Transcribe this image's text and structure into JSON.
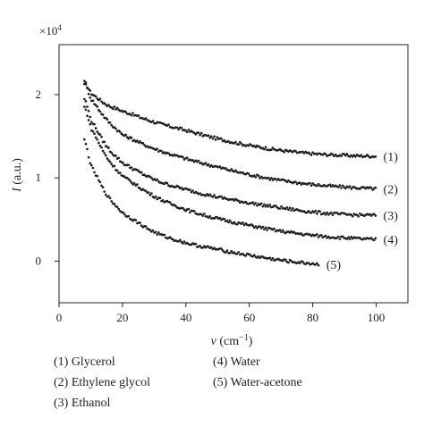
{
  "chart_data": {
    "type": "scatter",
    "x_range": [
      0,
      110
    ],
    "y_range": [
      -0.5,
      2.6
    ],
    "y_multiplier_label": "×10",
    "y_multiplier_exp": "4",
    "xlabel_symbol": "ν",
    "xlabel_unit_open": " (cm",
    "xlabel_unit_exp": "−1",
    "xlabel_unit_close": ")",
    "ylabel_symbol": "I",
    "ylabel_unit": " (a.u.)",
    "xticks": [
      {
        "value": 0,
        "label": "0"
      },
      {
        "value": 20,
        "label": "20"
      },
      {
        "value": 40,
        "label": "40"
      },
      {
        "value": 60,
        "label": "60"
      },
      {
        "value": 80,
        "label": "80"
      },
      {
        "value": 100,
        "label": "100"
      }
    ],
    "yticks": [
      {
        "value": 0,
        "label": "0"
      },
      {
        "value": 1,
        "label": "1"
      },
      {
        "value": 2,
        "label": "2"
      }
    ],
    "grid": false,
    "series": [
      {
        "name": "(1) Glycerol",
        "tag": "(1)",
        "x": [
          8,
          10,
          15,
          20,
          30,
          40,
          50,
          60,
          70,
          80,
          90,
          100
        ],
        "y": [
          2.15,
          2.02,
          1.88,
          1.8,
          1.67,
          1.57,
          1.47,
          1.39,
          1.33,
          1.29,
          1.27,
          1.26
        ]
      },
      {
        "name": "(2) Ethylene glycol",
        "tag": "(2)",
        "x": [
          8,
          10,
          15,
          20,
          30,
          40,
          50,
          60,
          70,
          80,
          90,
          100
        ],
        "y": [
          2.14,
          1.95,
          1.7,
          1.52,
          1.35,
          1.23,
          1.13,
          1.04,
          0.97,
          0.92,
          0.89,
          0.87
        ]
      },
      {
        "name": "(3) Ethanol",
        "tag": "(3)",
        "x": [
          8,
          10,
          15,
          20,
          30,
          40,
          50,
          60,
          70,
          80,
          90,
          100
        ],
        "y": [
          1.95,
          1.7,
          1.38,
          1.18,
          0.98,
          0.86,
          0.77,
          0.7,
          0.64,
          0.59,
          0.56,
          0.55
        ]
      },
      {
        "name": "(4) Water",
        "tag": "(4)",
        "x": [
          8,
          10,
          15,
          20,
          30,
          40,
          50,
          60,
          70,
          80,
          90,
          100
        ],
        "y": [
          1.85,
          1.6,
          1.25,
          1.02,
          0.78,
          0.62,
          0.51,
          0.43,
          0.36,
          0.31,
          0.28,
          0.26
        ]
      },
      {
        "name": "(5) Water-acetone",
        "tag": "(5)",
        "x": [
          8,
          10,
          15,
          20,
          30,
          40,
          50,
          60,
          70,
          80,
          82
        ],
        "y": [
          1.45,
          1.15,
          0.8,
          0.58,
          0.35,
          0.22,
          0.14,
          0.07,
          0.01,
          -0.03,
          -0.04
        ]
      }
    ]
  },
  "legend": {
    "items": [
      {
        "label": "(1) Glycerol"
      },
      {
        "label": "(2) Ethylene glycol"
      },
      {
        "label": "(3) Ethanol"
      },
      {
        "label": "(4) Water"
      },
      {
        "label": "(5) Water-acetone"
      }
    ]
  },
  "colors": {
    "ink": "#231f20",
    "background": "#ffffff"
  }
}
